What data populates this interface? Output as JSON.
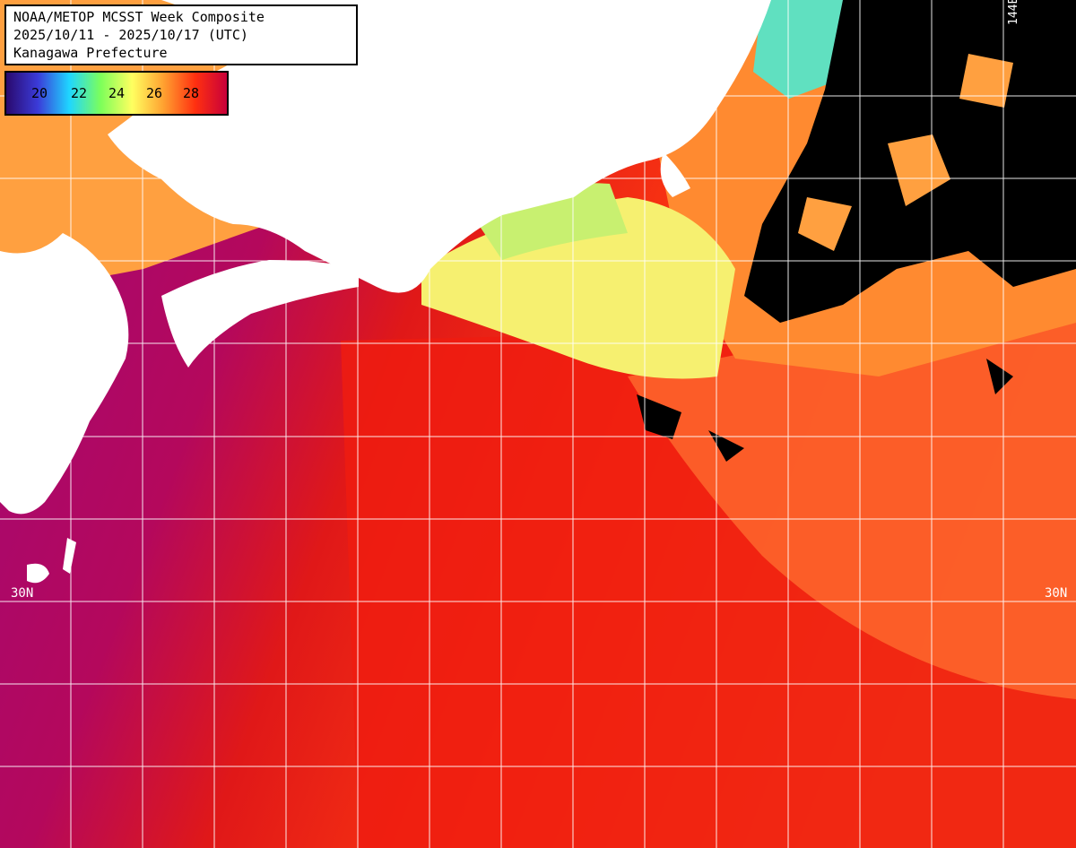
{
  "title": {
    "line1": "NOAA/METOP MCSST Week Composite",
    "line2": "2025/10/11 - 2025/10/17 (UTC)",
    "line3": "Kanagawa Prefecture"
  },
  "colorbar": {
    "labels": [
      "20",
      "22",
      "24",
      "26",
      "28"
    ],
    "colors": [
      "#2a0a6e",
      "#3b3bd8",
      "#1fd6ff",
      "#7dff5a",
      "#ffff60",
      "#ffa030",
      "#ff3010",
      "#c8003a"
    ]
  },
  "grid": {
    "latitude_labels": [
      "30N",
      "30N"
    ],
    "longitude_labels": [
      "144E"
    ]
  },
  "colors": {
    "land": "#ffffff",
    "cloud": "#000000",
    "grid": "#ffffff",
    "sst_warm": "#b40a6a",
    "sst_mid": "#ff2a00",
    "sst_cool": "#ff9a3a",
    "sst_cold": "#9fff7a"
  }
}
